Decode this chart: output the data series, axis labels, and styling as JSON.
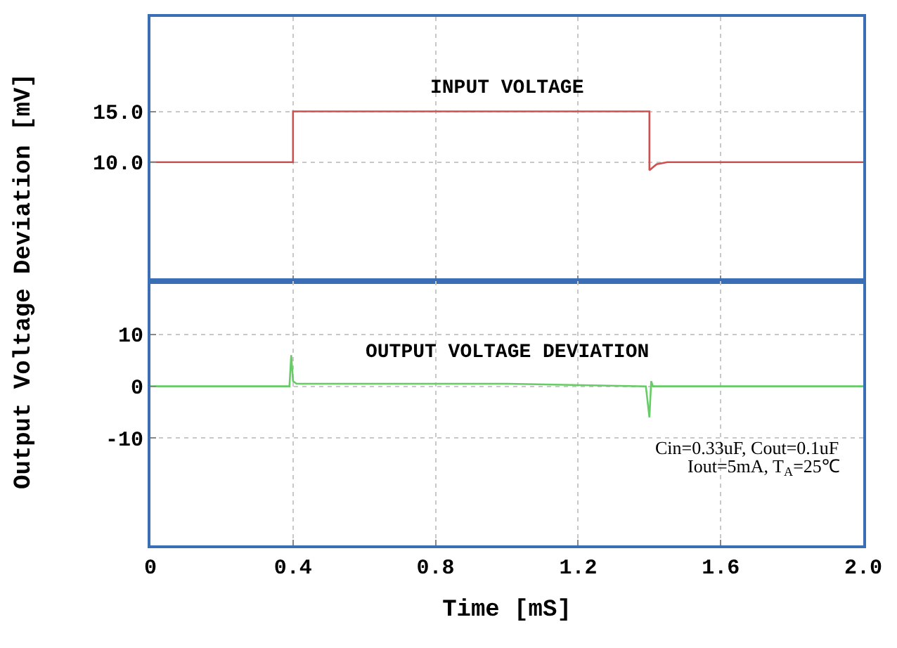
{
  "chart_data": [
    {
      "type": "line",
      "xlim": [
        0,
        2.0
      ],
      "ylim": [
        -1.7,
        24.3
      ],
      "yticks": [
        {
          "value": 10,
          "label": "10.0"
        },
        {
          "value": 15,
          "label": "15.0"
        }
      ],
      "tick_labels": "y",
      "grid": true,
      "series": [
        {
          "name": "INPUT VOLTAGE",
          "color": "#d05050",
          "x": [
            0,
            0.4,
            0.4,
            1.4,
            1.4,
            1.42,
            1.45,
            2.0
          ],
          "values": [
            10,
            10,
            15,
            15,
            9.2,
            9.8,
            10,
            10
          ]
        }
      ]
    },
    {
      "type": "line",
      "xlim": [
        0,
        2.0
      ],
      "xticks": [
        0,
        0.4,
        0.8,
        1.2,
        1.6,
        {
          "value": 2.0,
          "label": "2.0"
        }
      ],
      "ylim": [
        -30.7,
        20.3
      ],
      "yticks": [
        -10,
        0,
        10
      ],
      "grid": true,
      "xlabel": "Time [mS]",
      "ylabel": "Output Voltage Deviation [mV]",
      "series": [
        {
          "name": "OUTPUT VOLTAGE DEVIATION",
          "color": "#66cc66",
          "x": [
            0,
            0.39,
            0.395,
            0.4,
            0.41,
            1.0,
            1.39,
            1.4,
            1.405,
            1.41,
            2.0
          ],
          "values": [
            0,
            0,
            6,
            1,
            0.5,
            0.5,
            0,
            -6,
            1,
            0,
            0
          ]
        }
      ],
      "annotations": [
        "Cin=0.33uF, Cout=0.1uF",
        "Iout=5mA, T$_{A}$=25℃"
      ]
    }
  ]
}
